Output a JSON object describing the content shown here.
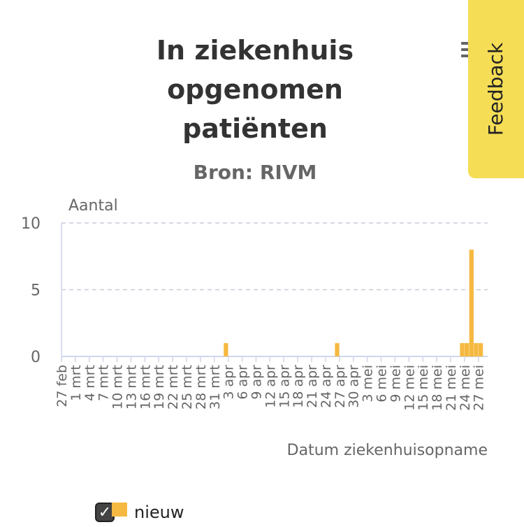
{
  "header": {
    "title_line1": "In ziekenhuis",
    "title_line2": "opgenomen",
    "title_line3": "patiënten",
    "subtitle": "Bron: RIVM"
  },
  "feedback": {
    "label": "Feedback"
  },
  "menu": {
    "icon": "hamburger-menu-icon"
  },
  "colors": {
    "bar": "#f5b941",
    "grid": "#c8ccd8",
    "axis": "#cfd6ea",
    "feedback_bg": "#f5dd55"
  },
  "legend": {
    "label": "nieuw",
    "checked": true
  },
  "chart_data": {
    "type": "bar",
    "title": "In ziekenhuis opgenomen patiënten",
    "subtitle": "Bron: RIVM",
    "ylabel": "Aantal",
    "xlabel": "Datum ziekenhuisopname",
    "ylim": [
      0,
      10
    ],
    "yticks": [
      0,
      5,
      10
    ],
    "grid": true,
    "legend_position": "bottom-left",
    "start_date": "2020-02-27",
    "end_date": "2020-05-29",
    "tick_labels": [
      "27 feb",
      "1 mrt",
      "4 mrt",
      "7 mrt",
      "10 mrt",
      "13 mrt",
      "16 mrt",
      "19 mrt",
      "22 mrt",
      "25 mrt",
      "28 mrt",
      "31 mrt",
      "3 apr",
      "6 apr",
      "9 apr",
      "12 apr",
      "15 apr",
      "18 apr",
      "21 apr",
      "24 apr",
      "27 apr",
      "30 apr",
      "3 mei",
      "6 mei",
      "9 mei",
      "12 mei",
      "15 mei",
      "18 mei",
      "21 mei",
      "24 mei",
      "27 mei"
    ],
    "series": [
      {
        "name": "nieuw",
        "points": [
          {
            "x": "2020-04-02",
            "y": 1
          },
          {
            "x": "2020-04-26",
            "y": 1
          },
          {
            "x": "2020-05-23",
            "y": 1
          },
          {
            "x": "2020-05-24",
            "y": 1
          },
          {
            "x": "2020-05-25",
            "y": 8
          },
          {
            "x": "2020-05-26",
            "y": 1
          },
          {
            "x": "2020-05-27",
            "y": 1
          }
        ]
      }
    ]
  }
}
